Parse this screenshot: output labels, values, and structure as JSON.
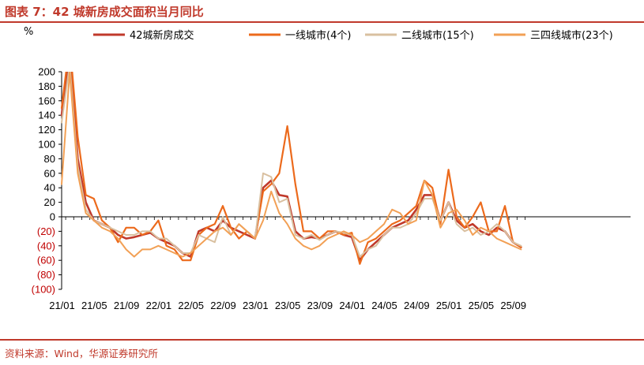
{
  "title": "图表 7：42 城新房成交面积当月同比",
  "source": "资料来源：Wind，华源证券研究所",
  "colors": {
    "brand": "#c0392b",
    "negative": "#c00000",
    "axis": "#000000"
  },
  "chart_data": {
    "type": "line",
    "ylabel": "%",
    "ylim": [
      -100,
      200
    ],
    "yticks": [
      200,
      180,
      160,
      140,
      120,
      100,
      80,
      60,
      40,
      20,
      0,
      -20,
      -40,
      -60,
      -80,
      -100
    ],
    "ytick_labels": [
      "200",
      "180",
      "160",
      "140",
      "120",
      "100",
      "80",
      "60",
      "40",
      "20",
      "0",
      "(20)",
      "(40)",
      "(60)",
      "(80)",
      "(100)"
    ],
    "x_labels": [
      "21/01",
      "21/05",
      "21/09",
      "22/01",
      "22/05",
      "22/09",
      "23/01",
      "23/05",
      "23/09",
      "24/01",
      "24/05",
      "24/09",
      "25/01",
      "25/05",
      "25/09"
    ],
    "x_label_index": [
      0,
      4,
      8,
      12,
      16,
      20,
      24,
      28,
      32,
      36,
      40,
      44,
      48,
      52,
      56
    ],
    "x_months": [
      "21/01",
      "21/02",
      "21/03",
      "21/04",
      "21/05",
      "21/06",
      "21/07",
      "21/08",
      "21/09",
      "21/10",
      "21/11",
      "21/12",
      "22/01",
      "22/02",
      "22/03",
      "22/04",
      "22/05",
      "22/06",
      "22/07",
      "22/08",
      "22/09",
      "22/10",
      "22/11",
      "22/12",
      "23/01",
      "23/02",
      "23/03",
      "23/04",
      "23/05",
      "23/06",
      "23/07",
      "23/08",
      "23/09",
      "23/10",
      "23/11",
      "23/12",
      "24/01",
      "24/02",
      "24/03",
      "24/04",
      "24/05",
      "24/06",
      "24/07",
      "24/08",
      "24/09",
      "24/10",
      "24/11",
      "24/12",
      "25/01",
      "25/02",
      "25/03",
      "25/04",
      "25/05",
      "25/06",
      "25/07",
      "25/08",
      "25/09",
      "25/10"
    ],
    "grid": false,
    "legend_position": "top",
    "series": [
      {
        "name": "42城新房成交",
        "color": "#c0392b",
        "width": 2.6,
        "values": [
          140,
          230,
          80,
          20,
          -5,
          -10,
          -15,
          -25,
          -30,
          -28,
          -25,
          -22,
          -30,
          -35,
          -40,
          -50,
          -55,
          -20,
          -15,
          -20,
          -5,
          -15,
          -20,
          -25,
          -30,
          40,
          50,
          30,
          28,
          -20,
          -30,
          -28,
          -30,
          -25,
          -20,
          -25,
          -28,
          -60,
          -45,
          -35,
          -25,
          -15,
          -10,
          -5,
          10,
          30,
          30,
          -5,
          20,
          -5,
          -15,
          -10,
          -20,
          -25,
          -15,
          -20,
          -35,
          -42
        ]
      },
      {
        "name": "一线城市(4个)",
        "color": "#ec6a1c",
        "width": 2.2,
        "values": [
          150,
          240,
          110,
          30,
          25,
          -5,
          -15,
          -35,
          -15,
          -15,
          -25,
          -20,
          -5,
          -40,
          -45,
          -60,
          -60,
          -25,
          -15,
          -10,
          15,
          -15,
          -30,
          -20,
          -30,
          35,
          45,
          60,
          125,
          45,
          -20,
          -20,
          -30,
          -20,
          -20,
          -25,
          -22,
          -65,
          -35,
          -30,
          -20,
          -10,
          -5,
          5,
          15,
          50,
          40,
          -10,
          65,
          0,
          -15,
          0,
          20,
          -20,
          -20,
          15,
          -35,
          -42
        ]
      },
      {
        "name": "二线城市(15个)",
        "color": "#d9c0a0",
        "width": 2.0,
        "values": [
          130,
          210,
          70,
          10,
          -5,
          -10,
          -15,
          -20,
          -25,
          -25,
          -20,
          -20,
          -30,
          -30,
          -40,
          -50,
          -50,
          -25,
          -30,
          -35,
          0,
          -25,
          -10,
          -20,
          -30,
          60,
          55,
          20,
          25,
          -25,
          -30,
          -25,
          -32,
          -25,
          -20,
          -22,
          -25,
          -55,
          -45,
          -40,
          -25,
          -15,
          -15,
          -10,
          5,
          25,
          25,
          -5,
          20,
          -10,
          -20,
          -15,
          -25,
          -20,
          -10,
          -20,
          -35,
          -40
        ]
      },
      {
        "name": "三四线城市(23个)",
        "color": "#f2a055",
        "width": 2.0,
        "values": [
          45,
          200,
          60,
          5,
          -5,
          -15,
          -20,
          -30,
          -45,
          -55,
          -45,
          -45,
          -40,
          -45,
          -50,
          -55,
          -50,
          -40,
          -30,
          -20,
          -15,
          -25,
          -10,
          -20,
          -30,
          -5,
          35,
          5,
          -10,
          -30,
          -40,
          -45,
          -40,
          -30,
          -25,
          -20,
          -25,
          -35,
          -30,
          -20,
          -10,
          10,
          5,
          -10,
          -5,
          50,
          30,
          -15,
          5,
          10,
          -5,
          -25,
          -15,
          -20,
          -30,
          -35,
          -40,
          -45
        ]
      }
    ]
  }
}
